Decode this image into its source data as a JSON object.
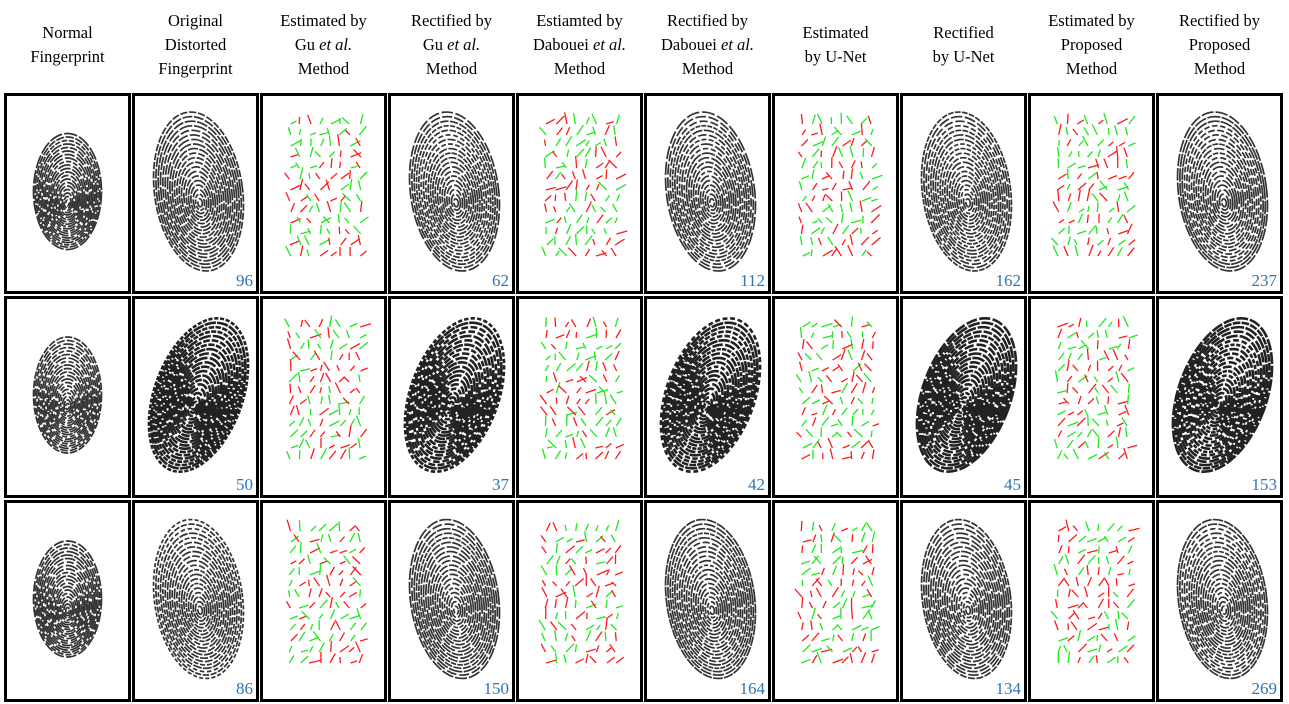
{
  "columns": [
    {
      "lines": [
        [
          "Normal"
        ],
        [
          "Fingerprint"
        ]
      ]
    },
    {
      "lines": [
        [
          "Original"
        ],
        [
          "Distorted"
        ],
        [
          "Fingerprint"
        ]
      ]
    },
    {
      "lines": [
        [
          "Estimated by"
        ],
        [
          "Gu ",
          {
            "text": "et al.",
            "italic": true
          }
        ],
        [
          "Method"
        ]
      ]
    },
    {
      "lines": [
        [
          "Rectified by"
        ],
        [
          "Gu ",
          {
            "text": "et al.",
            "italic": true
          }
        ],
        [
          "Method"
        ]
      ]
    },
    {
      "lines": [
        [
          "Estiamted by"
        ],
        [
          "Dabouei ",
          {
            "text": "et al.",
            "italic": true
          }
        ],
        [
          "Method"
        ]
      ]
    },
    {
      "lines": [
        [
          "Rectified by"
        ],
        [
          "Dabouei ",
          {
            "text": "et al.",
            "italic": true
          }
        ],
        [
          "Method"
        ]
      ]
    },
    {
      "lines": [
        [
          "Estimated"
        ],
        [
          "by U-Net"
        ]
      ]
    },
    {
      "lines": [
        [
          "Rectified"
        ],
        [
          "by U-Net"
        ]
      ]
    },
    {
      "lines": [
        [
          "Estimated by"
        ],
        [
          "Proposed"
        ],
        [
          "Method"
        ]
      ]
    },
    {
      "lines": [
        [
          "Rectified by"
        ],
        [
          "Proposed"
        ],
        [
          "Method"
        ]
      ]
    }
  ],
  "rows": [
    {
      "scores": [
        null,
        96,
        null,
        62,
        null,
        112,
        null,
        162,
        null,
        237
      ]
    },
    {
      "scores": [
        null,
        50,
        null,
        37,
        null,
        42,
        null,
        45,
        null,
        153
      ]
    },
    {
      "scores": [
        null,
        86,
        null,
        150,
        null,
        164,
        null,
        134,
        null,
        269
      ]
    }
  ]
}
